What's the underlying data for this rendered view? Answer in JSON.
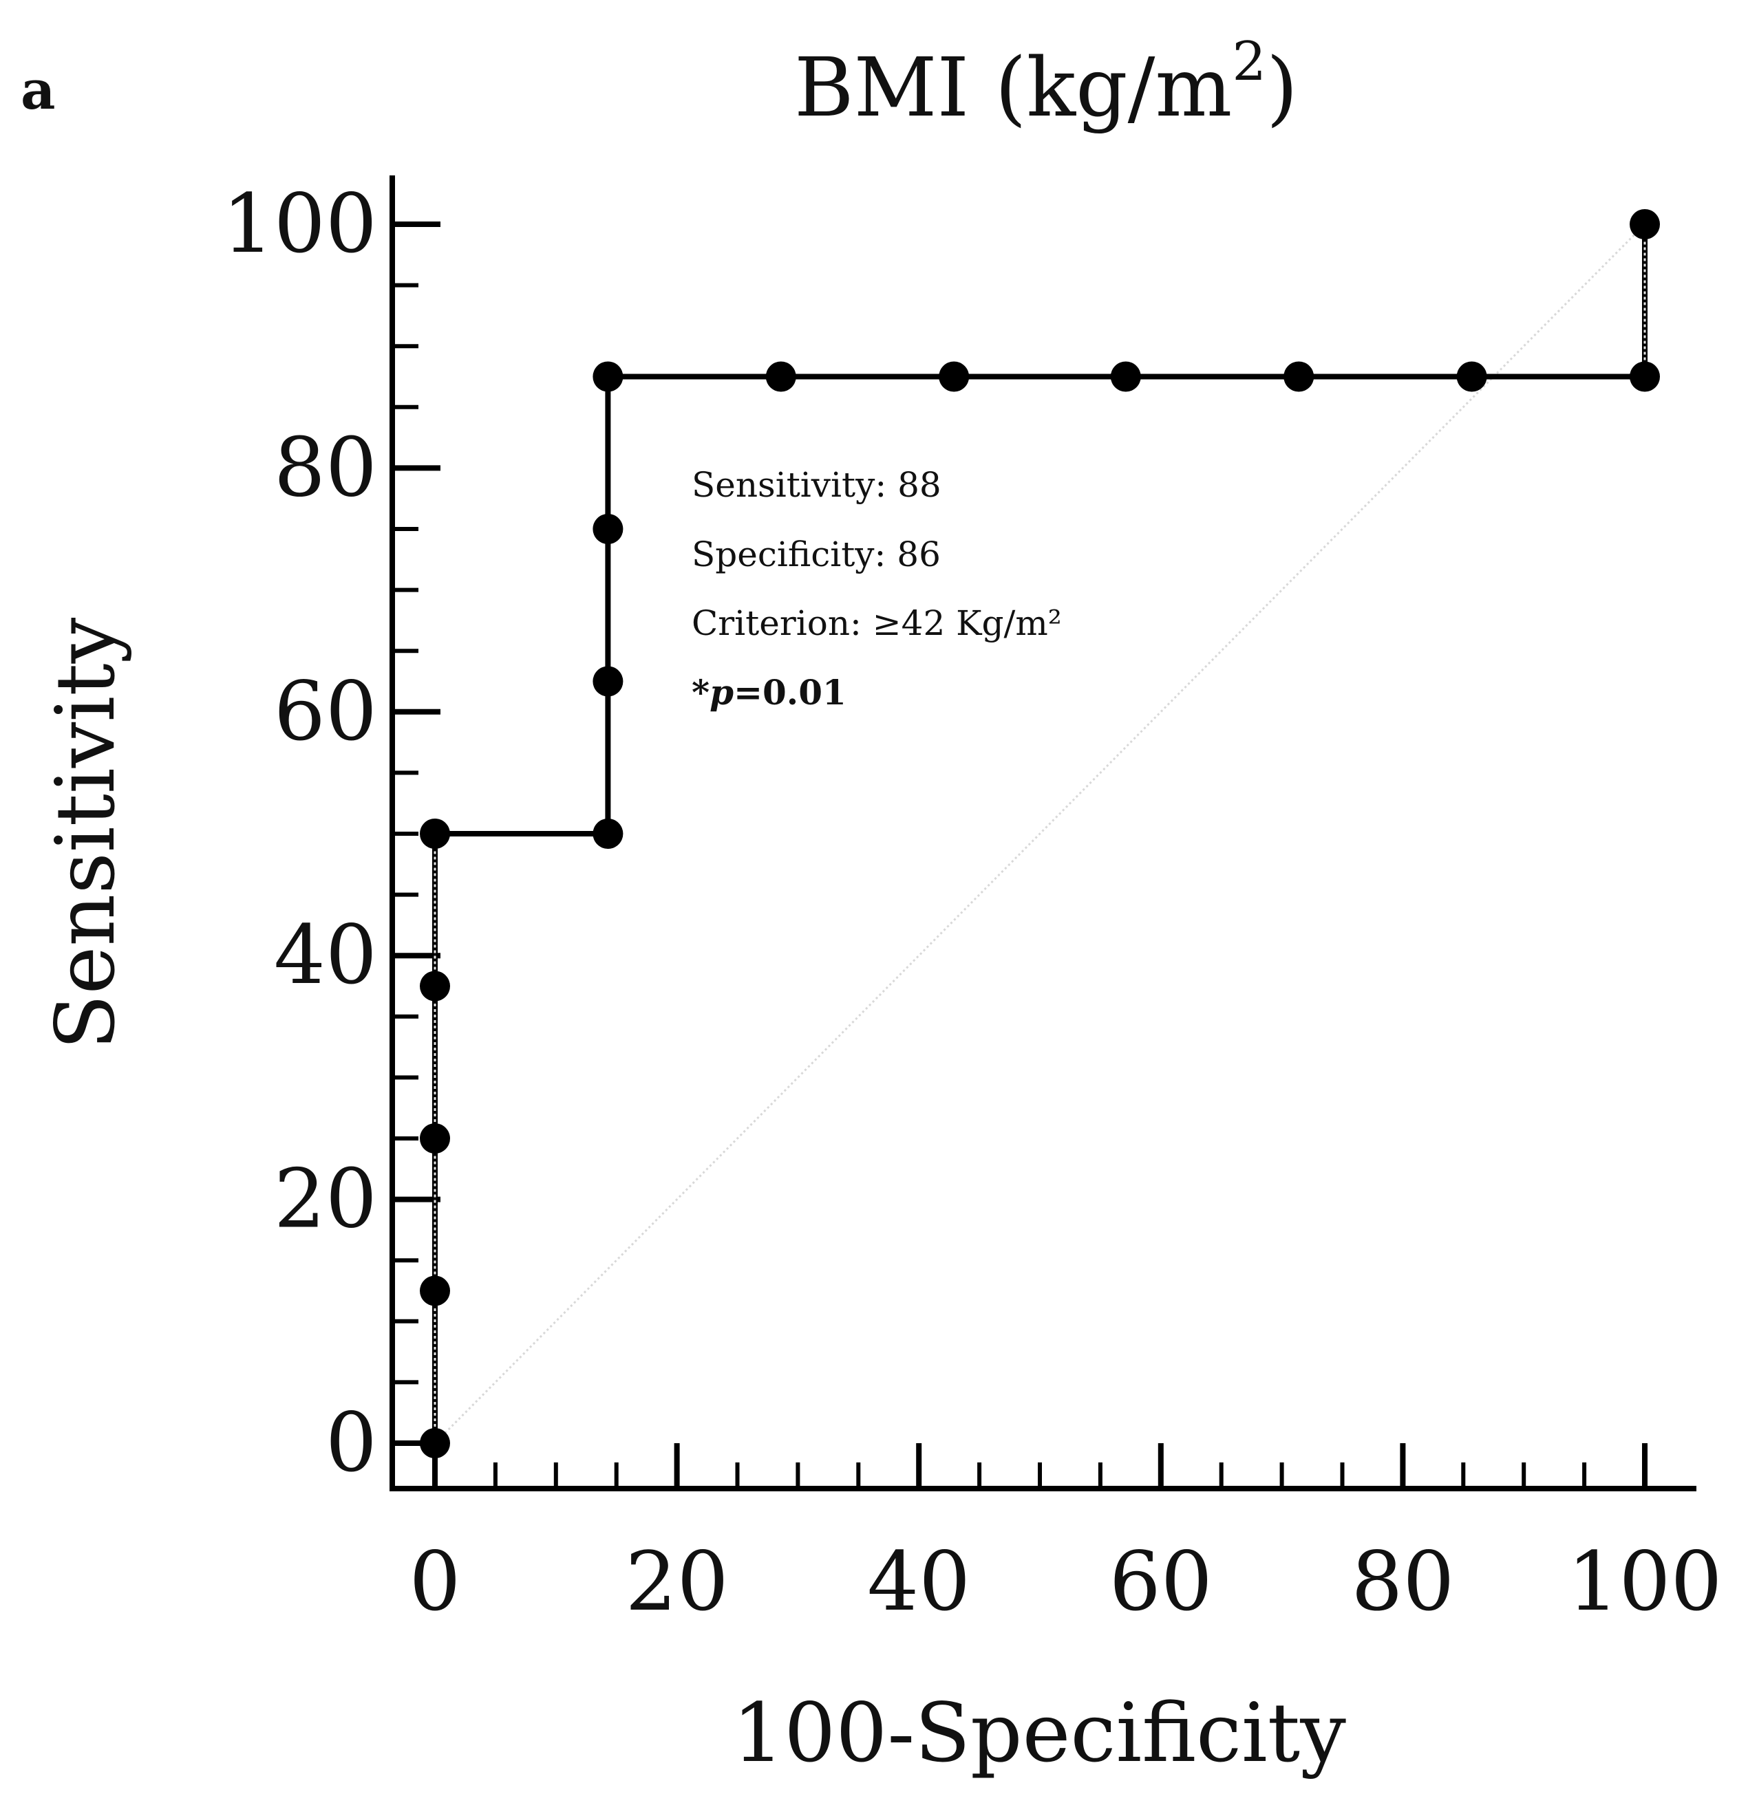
{
  "panel_label": "a",
  "chart_data": {
    "type": "line",
    "title": "BMI (kg/m",
    "title_superscript": "2",
    "title_suffix": ")",
    "xlabel": "100-Specificity",
    "ylabel": "Sensitivity",
    "xlim": [
      0,
      100
    ],
    "ylim": [
      0,
      100
    ],
    "x_ticks": [
      0,
      20,
      40,
      60,
      80,
      100
    ],
    "y_ticks": [
      0,
      20,
      40,
      60,
      80,
      100
    ],
    "grid": false,
    "series": [
      {
        "name": "ROC curve",
        "x": [
          0,
          0,
          0,
          0,
          0,
          14.3,
          14.3,
          14.3,
          14.3,
          28.6,
          42.9,
          57.1,
          71.4,
          85.7,
          100,
          100
        ],
        "y": [
          0,
          12.5,
          25,
          37.5,
          50,
          50,
          62.5,
          75,
          87.5,
          87.5,
          87.5,
          87.5,
          87.5,
          87.5,
          87.5,
          100
        ]
      },
      {
        "name": "reference line",
        "x": [
          0,
          100
        ],
        "y": [
          0,
          100
        ]
      }
    ],
    "annotations": {
      "sensitivity": "Sensitivity: 88",
      "specificity": "Specificity: 86",
      "criterion": "Criterion: ≥42 Kg/m²",
      "p_star": "*",
      "p_symbol": "p",
      "p_value": "=0.01"
    },
    "colors": {
      "line": "#000000",
      "marker": "#000000",
      "reference": "#d8d8d8",
      "dotted_segment": "#e6e6e6"
    }
  }
}
